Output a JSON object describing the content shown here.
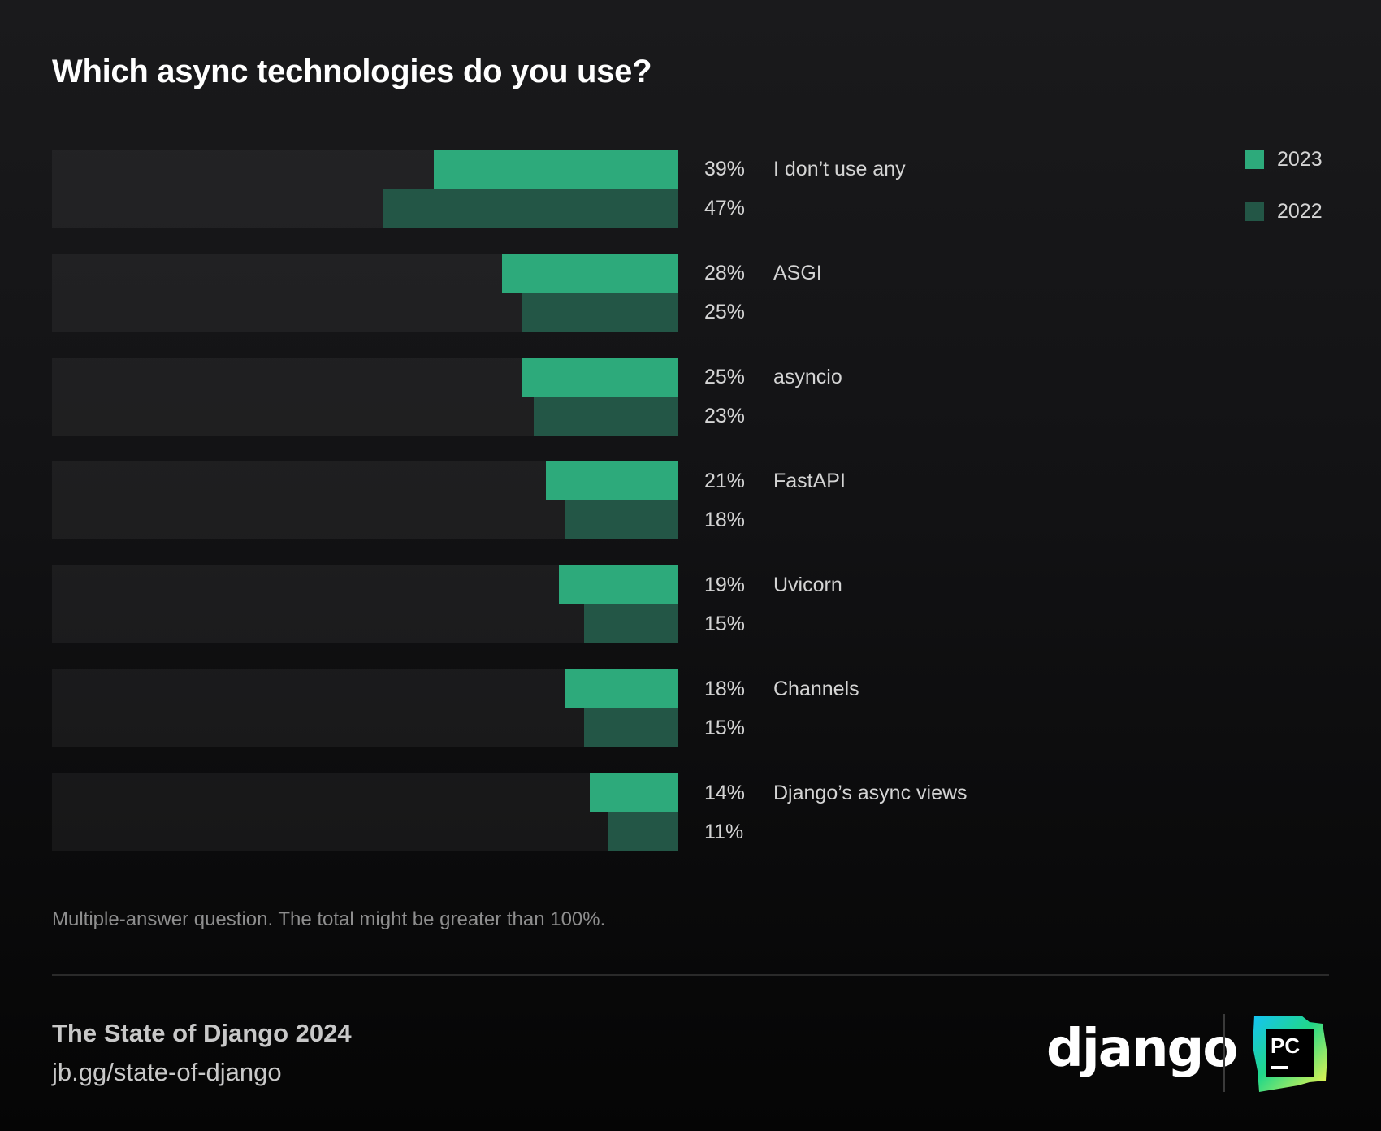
{
  "title": "Which async technologies do you use?",
  "legend": [
    {
      "label": "2023",
      "color": "#2daa7b"
    },
    {
      "label": "2022",
      "color": "#235646"
    }
  ],
  "note": "Multiple-answer question. The total might be greater than 100%.",
  "footer": {
    "title": "The State of Django 2024",
    "link": "jb.gg/state-of-django",
    "django_logo_text": "django",
    "pycharm_logo_text": "PC"
  },
  "chart_data": {
    "type": "bar",
    "orientation": "horizontal",
    "title": "Which async technologies do you use?",
    "xlabel": "",
    "ylabel": "",
    "xlim": [
      0,
      100
    ],
    "unit": "%",
    "grid": false,
    "legend_position": "top-right",
    "categories": [
      "I don’t use any",
      "ASGI",
      "asyncio",
      "FastAPI",
      "Uvicorn",
      "Channels",
      "Django’s async views"
    ],
    "series": [
      {
        "name": "2023",
        "color": "#2daa7b",
        "values": [
          39,
          28,
          25,
          21,
          19,
          18,
          14
        ],
        "labels": [
          "39%",
          "28%",
          "25%",
          "21%",
          "19%",
          "18%",
          "14%"
        ]
      },
      {
        "name": "2022",
        "color": "#235646",
        "values": [
          47,
          25,
          23,
          18,
          15,
          15,
          11
        ],
        "labels": [
          "47%",
          "25%",
          "23%",
          "18%",
          "15%",
          "15%",
          "11%"
        ]
      }
    ]
  }
}
